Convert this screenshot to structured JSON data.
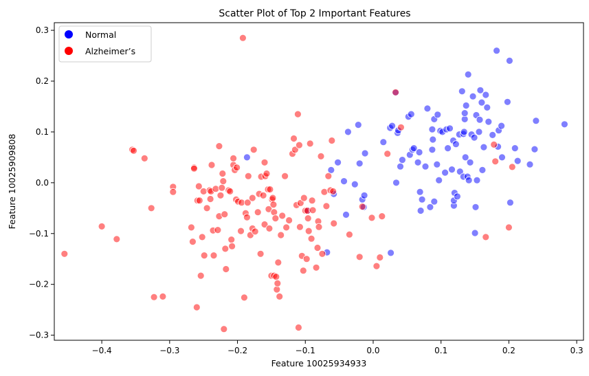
{
  "chart_data": {
    "type": "scatter",
    "title": "Scatter Plot of Top 2 Important Features",
    "xlabel": "Feature 10025934933",
    "ylabel": "Feature 10025909808",
    "xlim": [
      -0.47,
      0.31
    ],
    "ylim": [
      -0.31,
      0.315
    ],
    "x_ticks": [
      -0.4,
      -0.3,
      -0.2,
      -0.1,
      0.0,
      0.1,
      0.2,
      0.3
    ],
    "x_tick_labels": [
      "−0.4",
      "−0.3",
      "−0.2",
      "−0.1",
      "0.0",
      "0.1",
      "0.2",
      "0.3"
    ],
    "y_ticks": [
      -0.3,
      -0.2,
      -0.1,
      0.0,
      0.1,
      0.2,
      0.3
    ],
    "y_tick_labels": [
      "−0.3",
      "−0.2",
      "−0.1",
      "0.0",
      "0.1",
      "0.2",
      "0.3"
    ],
    "grid": false,
    "legend_position": "top-left",
    "legend": [
      {
        "label": "Normal",
        "color": "#0000ff"
      },
      {
        "label": "Alzheimer’s",
        "color": "#ff0000"
      }
    ],
    "series": [
      {
        "name": "Normal",
        "color": "#0000ff",
        "points": [
          [
            -0.186,
            0.05
          ],
          [
            -0.096,
            -0.055
          ],
          [
            -0.068,
            -0.137
          ],
          [
            -0.062,
            0.025
          ],
          [
            -0.058,
            -0.022
          ],
          [
            -0.052,
            0.04
          ],
          [
            -0.043,
            0.003
          ],
          [
            -0.04,
            -0.063
          ],
          [
            -0.027,
            -0.003
          ],
          [
            -0.02,
            0.038
          ],
          [
            -0.022,
            0.114
          ],
          [
            -0.016,
            -0.033
          ],
          [
            -0.014,
            -0.048
          ],
          [
            -0.013,
            -0.025
          ],
          [
            -0.012,
            0.058
          ],
          [
            -0.037,
            0.1
          ],
          [
            0.015,
            0.08
          ],
          [
            0.025,
            0.108
          ],
          [
            0.028,
            0.112
          ],
          [
            0.026,
            -0.138
          ],
          [
            0.033,
            0.177
          ],
          [
            0.034,
            0.0
          ],
          [
            0.036,
            0.098
          ],
          [
            0.037,
            0.103
          ],
          [
            0.04,
            0.032
          ],
          [
            0.043,
            0.045
          ],
          [
            0.052,
            0.13
          ],
          [
            0.054,
            0.055
          ],
          [
            0.056,
            0.135
          ],
          [
            0.058,
            0.065
          ],
          [
            0.06,
            0.068
          ],
          [
            0.066,
            0.04
          ],
          [
            0.068,
            0.06
          ],
          [
            0.069,
            -0.018
          ],
          [
            0.07,
            -0.055
          ],
          [
            0.072,
            -0.033
          ],
          [
            0.077,
            0.032
          ],
          [
            0.08,
            0.146
          ],
          [
            0.084,
            -0.048
          ],
          [
            0.087,
            0.065
          ],
          [
            0.087,
            0.105
          ],
          [
            0.088,
            0.085
          ],
          [
            0.09,
            0.125
          ],
          [
            0.09,
            -0.037
          ],
          [
            0.094,
            0.036
          ],
          [
            0.095,
            0.134
          ],
          [
            0.097,
            0.005
          ],
          [
            0.099,
            0.102
          ],
          [
            0.102,
            0.1
          ],
          [
            0.106,
            0.02
          ],
          [
            0.108,
            0.105
          ],
          [
            0.11,
            0.068
          ],
          [
            0.113,
            0.107
          ],
          [
            0.116,
            0.026
          ],
          [
            0.118,
            0.083
          ],
          [
            0.119,
            -0.045
          ],
          [
            0.119,
            -0.035
          ],
          [
            0.12,
            -0.02
          ],
          [
            0.122,
            0.076
          ],
          [
            0.124,
            -0.027
          ],
          [
            0.127,
            0.095
          ],
          [
            0.128,
            0.022
          ],
          [
            0.131,
            0.18
          ],
          [
            0.133,
            0.012
          ],
          [
            0.133,
            0.096
          ],
          [
            0.134,
            0.1
          ],
          [
            0.135,
            0.125
          ],
          [
            0.135,
            0.137
          ],
          [
            0.136,
            0.05
          ],
          [
            0.137,
            0.152
          ],
          [
            0.139,
            0.012
          ],
          [
            0.14,
            0.213
          ],
          [
            0.141,
            0.005
          ],
          [
            0.143,
            0.04
          ],
          [
            0.145,
            0.095
          ],
          [
            0.147,
            0.17
          ],
          [
            0.149,
            0.089
          ],
          [
            0.15,
            -0.099
          ],
          [
            0.151,
            -0.048
          ],
          [
            0.152,
            0.133
          ],
          [
            0.153,
            0.005
          ],
          [
            0.156,
            0.1
          ],
          [
            0.157,
            0.124
          ],
          [
            0.158,
            0.182
          ],
          [
            0.16,
            0.158
          ],
          [
            0.161,
            0.025
          ],
          [
            0.163,
            0.07
          ],
          [
            0.166,
            0.173
          ],
          [
            0.168,
            0.148
          ],
          [
            0.17,
            0.12
          ],
          [
            0.176,
            0.094
          ],
          [
            0.182,
            0.26
          ],
          [
            0.184,
            0.071
          ],
          [
            0.185,
            0.103
          ],
          [
            0.189,
            0.112
          ],
          [
            0.19,
            0.05
          ],
          [
            0.198,
            0.159
          ],
          [
            0.201,
            0.24
          ],
          [
            0.202,
            -0.039
          ],
          [
            0.209,
            0.068
          ],
          [
            0.213,
            0.043
          ],
          [
            0.231,
            0.036
          ],
          [
            0.238,
            0.066
          ],
          [
            0.24,
            0.122
          ],
          [
            0.282,
            0.115
          ]
        ]
      },
      {
        "name": "Alzheimer’s",
        "color": "#ff0000",
        "points": [
          [
            -0.455,
            -0.14
          ],
          [
            -0.4,
            -0.086
          ],
          [
            -0.378,
            -0.111
          ],
          [
            -0.355,
            0.065
          ],
          [
            -0.353,
            0.063
          ],
          [
            -0.337,
            0.048
          ],
          [
            -0.327,
            -0.05
          ],
          [
            -0.323,
            -0.225
          ],
          [
            -0.31,
            -0.224
          ],
          [
            -0.295,
            -0.008
          ],
          [
            -0.295,
            -0.018
          ],
          [
            -0.268,
            -0.088
          ],
          [
            -0.266,
            -0.116
          ],
          [
            -0.264,
            0.03
          ],
          [
            -0.264,
            0.028
          ],
          [
            -0.26,
            -0.245
          ],
          [
            -0.259,
            -0.035
          ],
          [
            -0.257,
            -0.007
          ],
          [
            -0.256,
            -0.035
          ],
          [
            -0.254,
            -0.183
          ],
          [
            -0.252,
            -0.107
          ],
          [
            -0.25,
            -0.017
          ],
          [
            -0.249,
            -0.143
          ],
          [
            -0.245,
            -0.05
          ],
          [
            -0.241,
            -0.015
          ],
          [
            -0.24,
            -0.032
          ],
          [
            -0.239,
            -0.017
          ],
          [
            -0.238,
            0.035
          ],
          [
            -0.236,
            -0.094
          ],
          [
            -0.235,
            -0.143
          ],
          [
            -0.232,
            -0.012
          ],
          [
            -0.229,
            -0.093
          ],
          [
            -0.227,
            0.072
          ],
          [
            -0.227,
            -0.066
          ],
          [
            -0.225,
            -0.025
          ],
          [
            -0.223,
            -0.01
          ],
          [
            -0.222,
            0.018
          ],
          [
            -0.221,
            0.003
          ],
          [
            -0.22,
            -0.288
          ],
          [
            -0.219,
            -0.062
          ],
          [
            -0.218,
            -0.13
          ],
          [
            -0.217,
            -0.17
          ],
          [
            -0.213,
            -0.015
          ],
          [
            -0.211,
            -0.017
          ],
          [
            -0.209,
            -0.112
          ],
          [
            -0.208,
            -0.125
          ],
          [
            -0.206,
            0.035
          ],
          [
            -0.206,
            0.048
          ],
          [
            -0.204,
            0.025
          ],
          [
            -0.202,
            -0.033
          ],
          [
            -0.201,
            0.03
          ],
          [
            -0.199,
            -0.037
          ],
          [
            -0.195,
            -0.095
          ],
          [
            -0.194,
            -0.039
          ],
          [
            -0.192,
            0.285
          ],
          [
            -0.19,
            -0.226
          ],
          [
            -0.188,
            -0.06
          ],
          [
            -0.186,
            -0.068
          ],
          [
            -0.185,
            -0.039
          ],
          [
            -0.184,
            0.013
          ],
          [
            -0.181,
            -0.103
          ],
          [
            -0.178,
            -0.09
          ],
          [
            -0.178,
            -0.03
          ],
          [
            -0.176,
            0.065
          ],
          [
            -0.174,
            -0.096
          ],
          [
            -0.17,
            -0.058
          ],
          [
            -0.168,
            -0.022
          ],
          [
            -0.166,
            -0.14
          ],
          [
            -0.165,
            0.012
          ],
          [
            -0.162,
            -0.025
          ],
          [
            -0.16,
            -0.082
          ],
          [
            -0.16,
            0.04
          ],
          [
            -0.159,
            0.013
          ],
          [
            -0.157,
            0.018
          ],
          [
            -0.155,
            -0.013
          ],
          [
            -0.154,
            -0.052
          ],
          [
            -0.153,
            -0.09
          ],
          [
            -0.152,
            -0.013
          ],
          [
            -0.15,
            -0.183
          ],
          [
            -0.149,
            -0.033
          ],
          [
            -0.148,
            -0.03
          ],
          [
            -0.147,
            -0.043
          ],
          [
            -0.146,
            -0.058
          ],
          [
            -0.146,
            -0.183
          ],
          [
            -0.144,
            -0.07
          ],
          [
            -0.143,
            -0.185
          ],
          [
            -0.142,
            -0.21
          ],
          [
            -0.141,
            -0.198
          ],
          [
            -0.14,
            -0.157
          ],
          [
            -0.138,
            -0.224
          ],
          [
            -0.136,
            -0.103
          ],
          [
            -0.134,
            -0.065
          ],
          [
            -0.13,
            0.013
          ],
          [
            -0.128,
            -0.088
          ],
          [
            -0.124,
            -0.074
          ],
          [
            -0.119,
            0.057
          ],
          [
            -0.117,
            0.087
          ],
          [
            -0.115,
            0.065
          ],
          [
            -0.113,
            -0.044
          ],
          [
            -0.111,
            0.135
          ],
          [
            -0.11,
            -0.285
          ],
          [
            -0.109,
            0.074
          ],
          [
            -0.108,
            -0.087
          ],
          [
            -0.107,
            -0.04
          ],
          [
            -0.105,
            -0.144
          ],
          [
            -0.103,
            -0.173
          ],
          [
            -0.102,
            -0.03
          ],
          [
            -0.1,
            -0.055
          ],
          [
            -0.098,
            -0.15
          ],
          [
            -0.097,
            -0.055
          ],
          [
            -0.096,
            -0.07
          ],
          [
            -0.095,
            -0.095
          ],
          [
            -0.093,
            0.077
          ],
          [
            -0.091,
            -0.11
          ],
          [
            -0.09,
            -0.035
          ],
          [
            -0.089,
            -0.054
          ],
          [
            -0.084,
            -0.167
          ],
          [
            -0.082,
            -0.128
          ],
          [
            -0.081,
            -0.076
          ],
          [
            -0.08,
            -0.087
          ],
          [
            -0.077,
            0.052
          ],
          [
            -0.075,
            -0.14
          ],
          [
            -0.072,
            -0.018
          ],
          [
            -0.069,
            -0.046
          ],
          [
            -0.066,
            0.013
          ],
          [
            -0.063,
            -0.015
          ],
          [
            -0.061,
            0.083
          ],
          [
            -0.059,
            -0.017
          ],
          [
            -0.058,
            -0.08
          ],
          [
            -0.035,
            -0.102
          ],
          [
            -0.02,
            -0.146
          ],
          [
            -0.016,
            -0.047
          ],
          [
            -0.002,
            -0.069
          ],
          [
            0.005,
            -0.164
          ],
          [
            0.01,
            -0.147
          ],
          [
            0.013,
            -0.066
          ],
          [
            0.021,
            0.057
          ],
          [
            0.033,
            0.178
          ],
          [
            0.041,
            0.109
          ],
          [
            0.166,
            -0.107
          ],
          [
            0.178,
            0.075
          ],
          [
            0.18,
            0.042
          ],
          [
            0.2,
            -0.088
          ],
          [
            0.205,
            0.031
          ]
        ]
      }
    ]
  }
}
